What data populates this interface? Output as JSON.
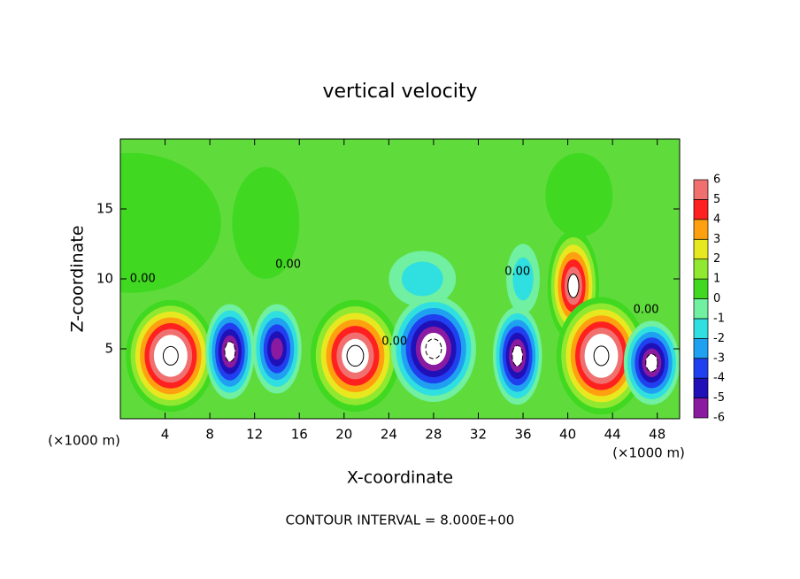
{
  "chart_data": {
    "type": "contour",
    "title": "vertical velocity",
    "xlabel": "X-coordinate",
    "ylabel": "Z-coordinate",
    "xunit": "(×1000 m)",
    "yunit": "(×1000 m)",
    "footer": "CONTOUR INTERVAL = 8.000E+00",
    "xlim": [
      0,
      50
    ],
    "ylim": [
      0,
      20
    ],
    "xticks": [
      4,
      8,
      12,
      16,
      20,
      24,
      28,
      32,
      36,
      40,
      44,
      48
    ],
    "yticks": [
      5,
      10,
      15
    ],
    "background_color": "#5fdc3c",
    "levels": [
      -6,
      -5,
      -4,
      -3,
      -2,
      -1,
      0,
      1,
      2,
      3,
      4,
      5,
      6
    ],
    "colors": [
      "#8a1aa0",
      "#2010b8",
      "#2040f0",
      "#20a0f0",
      "#30e0e0",
      "#70f0a0",
      "#40d820",
      "#90e830",
      "#e8e820",
      "#ffa010",
      "#ff2020",
      "#f07070"
    ],
    "cells": [
      {
        "x": 1,
        "z": 14,
        "value": 0.6,
        "rx": 8,
        "rz": 5
      },
      {
        "x": 13,
        "z": 14,
        "value": 0.8,
        "rx": 3,
        "rz": 4
      },
      {
        "x": 27,
        "z": 10,
        "value": -1.5,
        "rx": 3,
        "rz": 2
      },
      {
        "x": 36,
        "z": 10,
        "value": -2,
        "rx": 1.5,
        "rz": 2.5
      },
      {
        "x": 41,
        "z": 16,
        "value": 0.8,
        "rx": 3,
        "rz": 3
      },
      {
        "x": 4.5,
        "z": 4.5,
        "value": 9,
        "rx": 4,
        "rz": 4
      },
      {
        "x": 9.8,
        "z": 4.8,
        "value": -7,
        "rx": 2.2,
        "rz": 3.4
      },
      {
        "x": 14,
        "z": 5,
        "value": -6,
        "rx": 2.2,
        "rz": 3.2
      },
      {
        "x": 21,
        "z": 4.5,
        "value": 8,
        "rx": 4,
        "rz": 4
      },
      {
        "x": 28,
        "z": 5,
        "value": -8,
        "rx": 3.8,
        "rz": 3.8
      },
      {
        "x": 35.5,
        "z": 4.5,
        "value": -7,
        "rx": 2.2,
        "rz": 3.5
      },
      {
        "x": 40.5,
        "z": 9.5,
        "value": 6.5,
        "rx": 2.3,
        "rz": 4
      },
      {
        "x": 43,
        "z": 4.5,
        "value": 9,
        "rx": 4,
        "rz": 4.2
      },
      {
        "x": 47.5,
        "z": 4,
        "value": -7,
        "rx": 2.5,
        "rz": 3
      }
    ],
    "contour_labels": [
      {
        "text": "0.00",
        "x": 2,
        "z": 10
      },
      {
        "text": "0.00",
        "x": 15,
        "z": 11
      },
      {
        "text": "0.00",
        "x": 24.5,
        "z": 5.5
      },
      {
        "text": "0.00",
        "x": 35.5,
        "z": 10.5
      },
      {
        "text": "0.00",
        "x": 47,
        "z": 7.8
      }
    ]
  }
}
